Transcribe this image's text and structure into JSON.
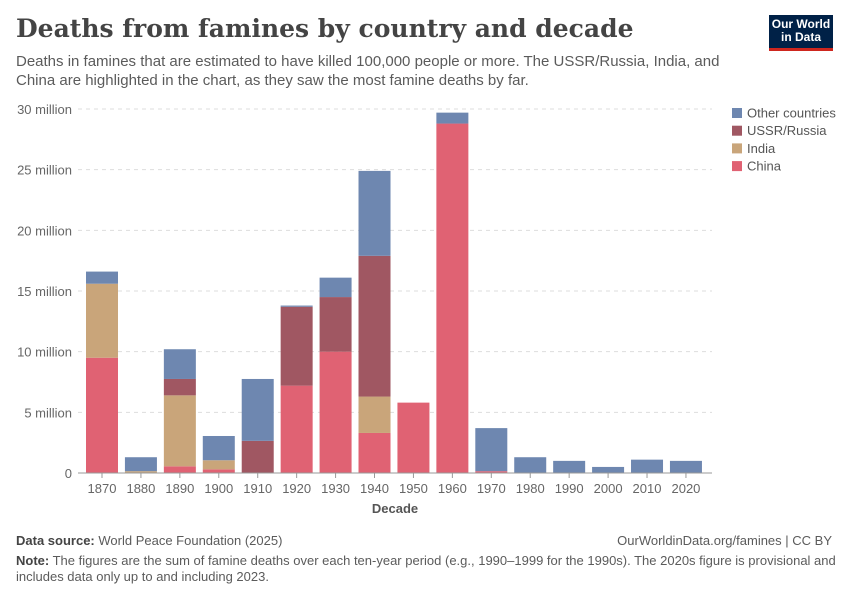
{
  "header": {
    "title": "Deaths from famines by country and decade",
    "subtitle": "Deaths in famines that are estimated to have killed 100,000 people or more. The USSR/Russia, India, and China are highlighted in the chart, as they saw the most famine deaths by far.",
    "logo": "Our World in Data"
  },
  "footer": {
    "source_label": "Data source:",
    "source": "World Peace Foundation (2025)",
    "url": "OurWorldinData.org/famines | CC BY",
    "note_label": "Note:",
    "note": "The figures are the sum of famine deaths over each ten-year period (e.g., 1990–1999 for the 1990s). The 2020s figure is provisional and includes data only up to and including 2023."
  },
  "chart_data": {
    "type": "bar",
    "stacked": true,
    "xlabel": "Decade",
    "ylabel": "",
    "ylim": [
      0,
      30000000
    ],
    "yticks": [
      {
        "v": 0,
        "label": "0"
      },
      {
        "v": 5000000,
        "label": "5 million"
      },
      {
        "v": 10000000,
        "label": "10 million"
      },
      {
        "v": 15000000,
        "label": "15 million"
      },
      {
        "v": 20000000,
        "label": "20 million"
      },
      {
        "v": 25000000,
        "label": "25 million"
      },
      {
        "v": 30000000,
        "label": "30 million"
      }
    ],
    "grid": true,
    "legend_position": "top-right",
    "categories": [
      "1870",
      "1880",
      "1890",
      "1900",
      "1910",
      "1920",
      "1930",
      "1940",
      "1950",
      "1960",
      "1970",
      "1980",
      "1990",
      "2000",
      "2010",
      "2020"
    ],
    "series": [
      {
        "name": "China",
        "color": "#e06273",
        "values": [
          9500000,
          0,
          550000,
          300000,
          0,
          7200000,
          10000000,
          3300000,
          5800000,
          28800000,
          150000,
          0,
          0,
          0,
          0,
          0
        ]
      },
      {
        "name": "India",
        "color": "#c9a57a",
        "values": [
          6100000,
          150000,
          5850000,
          750000,
          0,
          0,
          0,
          3000000,
          0,
          0,
          0,
          0,
          0,
          0,
          0,
          0
        ]
      },
      {
        "name": "USSR/Russia",
        "color": "#a05762",
        "values": [
          0,
          0,
          1350000,
          0,
          2650000,
          6500000,
          4500000,
          11600000,
          0,
          0,
          0,
          0,
          0,
          0,
          0,
          0
        ]
      },
      {
        "name": "Other countries",
        "color": "#6e87b0",
        "values": [
          1000000,
          1150000,
          2450000,
          2000000,
          5100000,
          100000,
          1600000,
          7000000,
          0,
          900000,
          3550000,
          1300000,
          1000000,
          500000,
          1100000,
          1000000
        ]
      }
    ],
    "legend_order": [
      "Other countries",
      "USSR/Russia",
      "India",
      "China"
    ]
  }
}
